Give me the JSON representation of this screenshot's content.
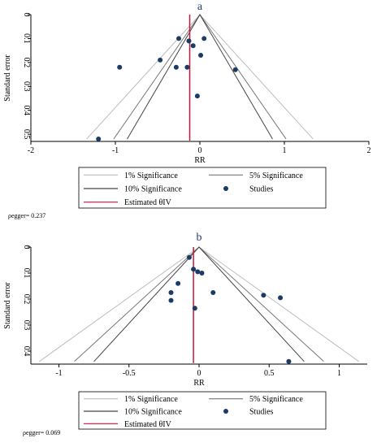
{
  "chart_data": [
    {
      "type": "scatter",
      "panel_label": "a",
      "xlabel": "RR",
      "ylabel": "Standard error",
      "xlim": [
        -2,
        2
      ],
      "ylim": [
        0,
        0.53
      ],
      "y_inverted": true,
      "x_ticks": [
        "-2",
        "-1",
        "0",
        "1",
        "2"
      ],
      "y_ticks": [
        "0",
        "0.1",
        "0.2",
        "0.3",
        "0.4",
        "0.5"
      ],
      "estimate": -0.12,
      "funnel_max_se": 0.52,
      "funnel_half_width_at_max_se": {
        "sig1": 1.34,
        "sig5": 1.02,
        "sig10": 0.86
      },
      "points": [
        {
          "x": -0.25,
          "y": 0.1
        },
        {
          "x": -0.13,
          "y": 0.11
        },
        {
          "x": -0.08,
          "y": 0.13
        },
        {
          "x": 0.05,
          "y": 0.1
        },
        {
          "x": 0.01,
          "y": 0.17
        },
        {
          "x": -0.47,
          "y": 0.19
        },
        {
          "x": -0.95,
          "y": 0.22
        },
        {
          "x": -0.28,
          "y": 0.22
        },
        {
          "x": -0.15,
          "y": 0.22
        },
        {
          "x": 0.42,
          "y": 0.23
        },
        {
          "x": -0.03,
          "y": 0.34
        },
        {
          "x": -1.2,
          "y": 0.52
        }
      ],
      "legend": [
        "1% Significance",
        "5% Significance",
        "10% Significance",
        "Studies",
        "Estimated θIV"
      ],
      "egger": "ρegger= 0.237"
    },
    {
      "type": "scatter",
      "panel_label": "b",
      "xlabel": "RR",
      "ylabel": "Standard error",
      "xlim": [
        -1.2,
        1.2
      ],
      "ylim": [
        0,
        0.45
      ],
      "y_inverted": true,
      "x_ticks": [
        "-1",
        "-0.5",
        "0",
        "0.5",
        "1"
      ],
      "y_ticks": [
        "0",
        "0.1",
        "0.2",
        "0.3",
        "0.4"
      ],
      "estimate": -0.04,
      "funnel_max_se": 0.44,
      "funnel_half_width_at_max_se": {
        "sig1": 1.14,
        "sig5": 0.89,
        "sig10": 0.75
      },
      "points": [
        {
          "x": -0.07,
          "y": 0.04
        },
        {
          "x": -0.04,
          "y": 0.085
        },
        {
          "x": -0.01,
          "y": 0.095
        },
        {
          "x": 0.02,
          "y": 0.1
        },
        {
          "x": -0.15,
          "y": 0.14
        },
        {
          "x": -0.2,
          "y": 0.175
        },
        {
          "x": 0.1,
          "y": 0.175
        },
        {
          "x": 0.46,
          "y": 0.185
        },
        {
          "x": 0.58,
          "y": 0.195
        },
        {
          "x": -0.2,
          "y": 0.205
        },
        {
          "x": -0.03,
          "y": 0.235
        },
        {
          "x": 0.64,
          "y": 0.44
        }
      ],
      "legend": [
        "1% Significance",
        "5% Significance",
        "10% Significance",
        "Studies",
        "Estimated θIV"
      ],
      "egger": "ρegger= 0.069"
    }
  ],
  "colors": {
    "sig1": "#bdbdbd",
    "sig5": "#777777",
    "sig10": "#444444",
    "studies": "#1a3b66",
    "estimate": "#c8143c",
    "title": "#1f3a6e"
  }
}
